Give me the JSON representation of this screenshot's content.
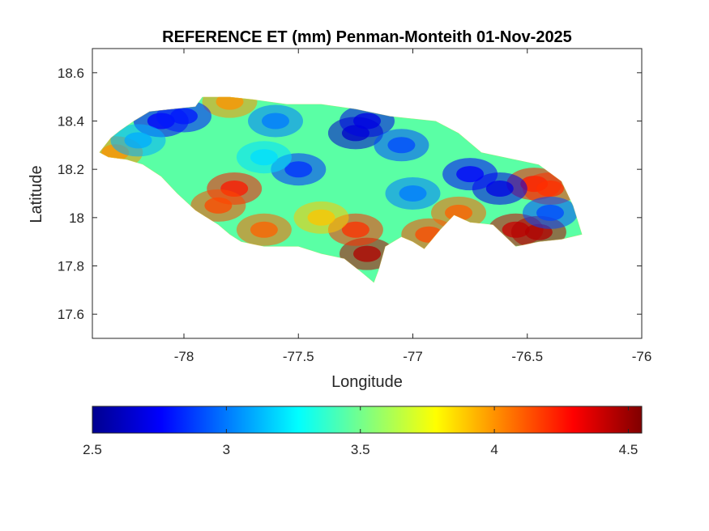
{
  "chart_data": {
    "type": "heatmap",
    "title": "REFERENCE ET (mm) Penman-Monteith 01-Nov-2025",
    "xlabel": "Longitude",
    "ylabel": "Latitude",
    "xlim": [
      -78.4,
      -76
    ],
    "ylim": [
      17.5,
      18.7
    ],
    "xticks": [
      -78,
      -77.5,
      -77,
      -76.5,
      -76
    ],
    "xtick_labels": [
      "-78",
      "-77.5",
      "-77",
      "-76.5",
      "-76"
    ],
    "yticks": [
      17.6,
      17.8,
      18,
      18.2,
      18.4,
      18.6
    ],
    "ytick_labels": [
      "17.6",
      "17.8",
      "18",
      "18.2",
      "18.4",
      "18.6"
    ],
    "grid": false,
    "colorbar": {
      "location": "bottom",
      "colormap": "jet",
      "range": [
        2.5,
        4.55
      ],
      "ticks": [
        2.5,
        3,
        3.5,
        4,
        4.5
      ],
      "tick_labels": [
        "2.5",
        "3",
        "3.5",
        "4",
        "4.5"
      ]
    },
    "field": {
      "unit": "mm",
      "land_outline_lonlat": [
        [
          -78.37,
          18.27
        ],
        [
          -78.32,
          18.33
        ],
        [
          -78.28,
          18.36
        ],
        [
          -78.22,
          18.4
        ],
        [
          -78.15,
          18.44
        ],
        [
          -78.05,
          18.45
        ],
        [
          -77.95,
          18.46
        ],
        [
          -77.92,
          18.5
        ],
        [
          -77.8,
          18.5
        ],
        [
          -77.7,
          18.49
        ],
        [
          -77.55,
          18.47
        ],
        [
          -77.4,
          18.47
        ],
        [
          -77.25,
          18.45
        ],
        [
          -77.1,
          18.42
        ],
        [
          -77.0,
          18.41
        ],
        [
          -76.9,
          18.4
        ],
        [
          -76.8,
          18.35
        ],
        [
          -76.7,
          18.27
        ],
        [
          -76.6,
          18.25
        ],
        [
          -76.45,
          18.22
        ],
        [
          -76.35,
          18.15
        ],
        [
          -76.3,
          18.05
        ],
        [
          -76.26,
          17.93
        ],
        [
          -76.35,
          17.91
        ],
        [
          -76.45,
          17.9
        ],
        [
          -76.55,
          17.88
        ],
        [
          -76.65,
          17.97
        ],
        [
          -76.75,
          17.98
        ],
        [
          -76.82,
          18.01
        ],
        [
          -76.88,
          17.95
        ],
        [
          -76.95,
          17.87
        ],
        [
          -77.0,
          17.9
        ],
        [
          -77.05,
          17.92
        ],
        [
          -77.12,
          17.88
        ],
        [
          -77.15,
          17.78
        ],
        [
          -77.17,
          17.73
        ],
        [
          -77.22,
          17.77
        ],
        [
          -77.3,
          17.83
        ],
        [
          -77.4,
          17.85
        ],
        [
          -77.5,
          17.88
        ],
        [
          -77.65,
          17.88
        ],
        [
          -77.75,
          17.9
        ],
        [
          -77.8,
          17.93
        ],
        [
          -77.85,
          17.97
        ],
        [
          -77.95,
          18.03
        ],
        [
          -78.03,
          18.1
        ],
        [
          -78.1,
          18.17
        ],
        [
          -78.18,
          18.22
        ],
        [
          -78.25,
          18.24
        ],
        [
          -78.33,
          18.25
        ]
      ],
      "hotspots": [
        {
          "lon": -77.2,
          "lat": 17.85,
          "et": 4.45
        },
        {
          "lon": -77.25,
          "lat": 17.95,
          "et": 4.2
        },
        {
          "lon": -76.55,
          "lat": 17.95,
          "et": 4.4
        },
        {
          "lon": -76.45,
          "lat": 17.94,
          "et": 4.45
        },
        {
          "lon": -76.47,
          "lat": 18.14,
          "et": 4.25
        },
        {
          "lon": -76.4,
          "lat": 18.12,
          "et": 4.2
        },
        {
          "lon": -77.78,
          "lat": 18.12,
          "et": 4.25
        },
        {
          "lon": -77.85,
          "lat": 18.05,
          "et": 4.15
        },
        {
          "lon": -77.65,
          "lat": 17.95,
          "et": 4.1
        },
        {
          "lon": -76.93,
          "lat": 17.93,
          "et": 4.15
        },
        {
          "lon": -76.8,
          "lat": 18.02,
          "et": 4.1
        },
        {
          "lon": -78.3,
          "lat": 18.27,
          "et": 4.0
        },
        {
          "lon": -77.4,
          "lat": 18.0,
          "et": 3.9
        },
        {
          "lon": -77.8,
          "lat": 18.48,
          "et": 4.0
        },
        {
          "lon": -77.25,
          "lat": 18.35,
          "et": 2.65
        },
        {
          "lon": -77.2,
          "lat": 18.4,
          "et": 2.7
        },
        {
          "lon": -76.62,
          "lat": 18.12,
          "et": 2.7
        },
        {
          "lon": -76.75,
          "lat": 18.18,
          "et": 2.75
        },
        {
          "lon": -78.1,
          "lat": 18.4,
          "et": 2.75
        },
        {
          "lon": -78.0,
          "lat": 18.42,
          "et": 2.8
        },
        {
          "lon": -77.5,
          "lat": 18.2,
          "et": 2.85
        },
        {
          "lon": -77.05,
          "lat": 18.3,
          "et": 2.9
        },
        {
          "lon": -77.0,
          "lat": 18.1,
          "et": 3.0
        },
        {
          "lon": -77.65,
          "lat": 18.25,
          "et": 3.2
        },
        {
          "lon": -77.6,
          "lat": 18.4,
          "et": 3.0
        },
        {
          "lon": -78.2,
          "lat": 18.32,
          "et": 3.1
        },
        {
          "lon": -76.4,
          "lat": 18.02,
          "et": 2.9
        }
      ]
    }
  }
}
